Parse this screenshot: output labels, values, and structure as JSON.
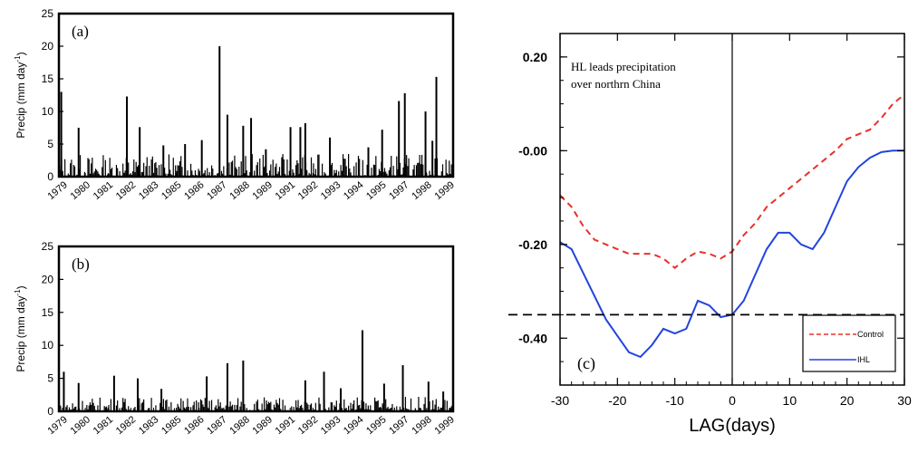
{
  "chart_data": [
    {
      "type": "bar",
      "panel_label": "(a)",
      "ylabel_main": "Precip (mm day",
      "ylabel_sup": "-1",
      "ylabel_close": ")",
      "ylim": [
        0,
        25
      ],
      "yticks": [
        "0",
        "5",
        "10",
        "15",
        "20",
        "25"
      ],
      "xlim": [
        0,
        20
      ],
      "xticks": [
        "1979",
        "1980",
        "1981",
        "1982",
        "1983",
        "1985",
        "1986",
        "1987",
        "1988",
        "1989",
        "1991",
        "1992",
        "1993",
        "1994",
        "1995",
        "1997",
        "1998",
        "1999"
      ],
      "spikes": [
        {
          "x": 0.12,
          "value": 13
        },
        {
          "x": 1.0,
          "value": 7.5
        },
        {
          "x": 3.45,
          "value": 12.3
        },
        {
          "x": 4.1,
          "value": 7.6
        },
        {
          "x": 5.3,
          "value": 4.8
        },
        {
          "x": 6.4,
          "value": 5.0
        },
        {
          "x": 7.25,
          "value": 5.6
        },
        {
          "x": 8.15,
          "value": 20.0
        },
        {
          "x": 8.55,
          "value": 9.5
        },
        {
          "x": 9.35,
          "value": 7.8
        },
        {
          "x": 9.75,
          "value": 9.0
        },
        {
          "x": 10.5,
          "value": 4.2
        },
        {
          "x": 11.75,
          "value": 7.6
        },
        {
          "x": 12.25,
          "value": 7.6
        },
        {
          "x": 12.5,
          "value": 8.2
        },
        {
          "x": 13.75,
          "value": 6.0
        },
        {
          "x": 15.7,
          "value": 4.5
        },
        {
          "x": 16.4,
          "value": 7.2
        },
        {
          "x": 17.25,
          "value": 11.6
        },
        {
          "x": 17.55,
          "value": 12.8
        },
        {
          "x": 18.6,
          "value": 10.0
        },
        {
          "x": 18.95,
          "value": 5.5
        },
        {
          "x": 19.15,
          "value": 15.3
        }
      ],
      "noise_max": 3.5
    },
    {
      "type": "bar",
      "panel_label": "(b)",
      "ylabel_main": "Precip (mm day",
      "ylabel_sup": "-1",
      "ylabel_close": ")",
      "ylim": [
        0,
        25
      ],
      "yticks": [
        "0",
        "5",
        "10",
        "15",
        "20",
        "25"
      ],
      "xlim": [
        0,
        20
      ],
      "xticks": [
        "1979",
        "1980",
        "1981",
        "1982",
        "1983",
        "1985",
        "1986",
        "1987",
        "1988",
        "1989",
        "1991",
        "1992",
        "1993",
        "1994",
        "1995",
        "1997",
        "1998",
        "1999"
      ],
      "spikes": [
        {
          "x": 0.25,
          "value": 6.0
        },
        {
          "x": 1.0,
          "value": 4.3
        },
        {
          "x": 2.8,
          "value": 5.4
        },
        {
          "x": 4.0,
          "value": 5.0
        },
        {
          "x": 5.2,
          "value": 3.4
        },
        {
          "x": 7.5,
          "value": 5.3
        },
        {
          "x": 8.55,
          "value": 7.3
        },
        {
          "x": 9.35,
          "value": 7.7
        },
        {
          "x": 12.5,
          "value": 4.7
        },
        {
          "x": 13.45,
          "value": 6.0
        },
        {
          "x": 14.3,
          "value": 3.5
        },
        {
          "x": 15.4,
          "value": 12.3
        },
        {
          "x": 16.5,
          "value": 4.2
        },
        {
          "x": 17.45,
          "value": 7.0
        },
        {
          "x": 18.75,
          "value": 4.5
        },
        {
          "x": 19.5,
          "value": 3.0
        }
      ],
      "noise_max": 2.2
    },
    {
      "type": "line",
      "panel_label": "(c)",
      "xlabel": "LAG(days)",
      "xlim": [
        -30,
        30
      ],
      "ylim": [
        -0.5,
        0.25
      ],
      "xticks": [
        "-30",
        "-20",
        "-10",
        "0",
        "10",
        "20",
        "30"
      ],
      "yticks": [
        "0.20",
        "-0.00",
        "-0.20",
        "-0.40"
      ],
      "annotation": [
        "HL leads precipitation",
        "over northrn China"
      ],
      "reference_line_y": -0.35,
      "zero_line_x": 0,
      "legend_position": "bottom-right",
      "series": [
        {
          "name": "Control",
          "color": "#e8302a",
          "style": "dashed",
          "x": [
            -30,
            -28,
            -26,
            -24,
            -22,
            -20,
            -18,
            -16,
            -14,
            -12,
            -10,
            -8,
            -6,
            -4,
            -2,
            0,
            2,
            4,
            6,
            8,
            10,
            12,
            14,
            16,
            18,
            20,
            22,
            24,
            26,
            28,
            30
          ],
          "y": [
            -0.095,
            -0.12,
            -0.16,
            -0.19,
            -0.2,
            -0.21,
            -0.22,
            -0.22,
            -0.22,
            -0.23,
            -0.25,
            -0.23,
            -0.215,
            -0.22,
            -0.23,
            -0.215,
            -0.18,
            -0.155,
            -0.12,
            -0.1,
            -0.08,
            -0.06,
            -0.04,
            -0.02,
            0.0,
            0.025,
            0.035,
            0.045,
            0.07,
            0.1,
            0.12
          ]
        },
        {
          "name": "IHL",
          "color": "#2244dd",
          "style": "solid",
          "x": [
            -30,
            -28,
            -26,
            -24,
            -22,
            -20,
            -18,
            -16,
            -14,
            -12,
            -10,
            -8,
            -6,
            -4,
            -2,
            0,
            2,
            4,
            6,
            8,
            10,
            12,
            14,
            16,
            18,
            20,
            22,
            24,
            26,
            28,
            30
          ],
          "y": [
            -0.195,
            -0.21,
            -0.26,
            -0.31,
            -0.36,
            -0.395,
            -0.43,
            -0.44,
            -0.415,
            -0.38,
            -0.39,
            -0.38,
            -0.32,
            -0.33,
            -0.355,
            -0.35,
            -0.32,
            -0.265,
            -0.21,
            -0.175,
            -0.175,
            -0.2,
            -0.21,
            -0.175,
            -0.12,
            -0.065,
            -0.035,
            -0.015,
            -0.003,
            0.0,
            0.0
          ]
        }
      ]
    }
  ]
}
